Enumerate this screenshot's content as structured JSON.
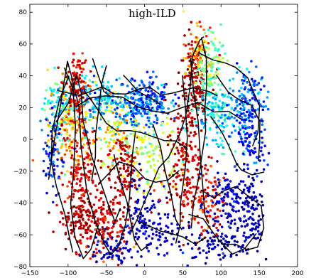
{
  "chart_data": {
    "type": "scatter",
    "title": "high-ILD",
    "xlabel": "",
    "ylabel": "",
    "xlim": [
      -150,
      200
    ],
    "ylim": [
      -80,
      85
    ],
    "xticks": [
      -150,
      -100,
      -50,
      0,
      50,
      100,
      150,
      200
    ],
    "yticks": [
      -80,
      -60,
      -40,
      -20,
      0,
      20,
      40,
      60,
      80
    ],
    "xtick_labels": [
      "−150",
      "−100",
      "−50",
      "0",
      "50",
      "100",
      "150",
      "200"
    ],
    "ytick_labels": [
      "−80",
      "−60",
      "−40",
      "−20",
      "0",
      "20",
      "40",
      "60",
      "80"
    ],
    "grid": false,
    "colormap": "jet",
    "colormap_stops": [
      "#00008f",
      "#0000ff",
      "#00ffff",
      "#ffff00",
      "#ff0000",
      "#800000"
    ],
    "series": [
      {
        "kind": "points",
        "clusters": [
          {
            "x": -110,
            "y": 20,
            "sx": 12,
            "sy": 10,
            "n": 120,
            "c": 0.4
          },
          {
            "x": -95,
            "y": 10,
            "sx": 15,
            "sy": 15,
            "n": 160,
            "c": 0.65
          },
          {
            "x": -90,
            "y": 35,
            "sx": 8,
            "sy": 10,
            "n": 120,
            "c": 0.85
          },
          {
            "x": -85,
            "y": -20,
            "sx": 12,
            "sy": 18,
            "n": 160,
            "c": 0.82
          },
          {
            "x": -80,
            "y": -50,
            "sx": 15,
            "sy": 10,
            "n": 130,
            "c": 0.92
          },
          {
            "x": -50,
            "y": -55,
            "sx": 15,
            "sy": 10,
            "n": 110,
            "c": 0.85
          },
          {
            "x": -45,
            "y": -70,
            "sx": 15,
            "sy": 5,
            "n": 70,
            "c": 0.1
          },
          {
            "x": -60,
            "y": 25,
            "sx": 15,
            "sy": 8,
            "n": 120,
            "c": 0.35
          },
          {
            "x": -40,
            "y": 5,
            "sx": 15,
            "sy": 12,
            "n": 130,
            "c": 0.6
          },
          {
            "x": -25,
            "y": -20,
            "sx": 12,
            "sy": 12,
            "n": 120,
            "c": 0.9
          },
          {
            "x": -15,
            "y": 20,
            "sx": 15,
            "sy": 7,
            "n": 110,
            "c": 0.3
          },
          {
            "x": 5,
            "y": 25,
            "sx": 20,
            "sy": 7,
            "n": 160,
            "c": 0.25
          },
          {
            "x": 10,
            "y": -10,
            "sx": 18,
            "sy": 12,
            "n": 120,
            "c": 0.55
          },
          {
            "x": 0,
            "y": -45,
            "sx": 15,
            "sy": 12,
            "n": 90,
            "c": 0.1
          },
          {
            "x": 50,
            "y": -15,
            "sx": 12,
            "sy": 18,
            "n": 150,
            "c": 0.88
          },
          {
            "x": 65,
            "y": 35,
            "sx": 10,
            "sy": 15,
            "n": 160,
            "c": 0.92
          },
          {
            "x": 70,
            "y": 55,
            "sx": 8,
            "sy": 8,
            "n": 80,
            "c": 0.68
          },
          {
            "x": 85,
            "y": 45,
            "sx": 10,
            "sy": 10,
            "n": 110,
            "c": 0.5
          },
          {
            "x": 95,
            "y": 15,
            "sx": 15,
            "sy": 10,
            "n": 150,
            "c": 0.38
          },
          {
            "x": 135,
            "y": 25,
            "sx": 12,
            "sy": 10,
            "n": 140,
            "c": 0.28
          },
          {
            "x": 140,
            "y": 0,
            "sx": 10,
            "sy": 10,
            "n": 90,
            "c": 0.22
          },
          {
            "x": 75,
            "y": -40,
            "sx": 15,
            "sy": 12,
            "n": 120,
            "c": 0.8
          },
          {
            "x": 110,
            "y": -40,
            "sx": 15,
            "sy": 10,
            "n": 120,
            "c": 0.12
          },
          {
            "x": 140,
            "y": -45,
            "sx": 10,
            "sy": 15,
            "n": 90,
            "c": 0.06
          },
          {
            "x": 100,
            "y": -65,
            "sx": 20,
            "sy": 6,
            "n": 90,
            "c": 0.08
          },
          {
            "x": 20,
            "y": -60,
            "sx": 20,
            "sy": 8,
            "n": 70,
            "c": 0.12
          },
          {
            "x": -120,
            "y": -10,
            "sx": 8,
            "sy": 12,
            "n": 70,
            "c": 0.2
          }
        ]
      },
      {
        "kind": "trajectories",
        "paths": [
          [
            [
              -125,
              -25
            ],
            [
              -118,
              -5
            ],
            [
              -110,
              20
            ],
            [
              -105,
              35
            ],
            [
              -100,
              48
            ],
            [
              -95,
              40
            ],
            [
              -88,
              20
            ],
            [
              -80,
              -5
            ],
            [
              -75,
              -30
            ],
            [
              -65,
              -50
            ],
            [
              -55,
              -65
            ],
            [
              -45,
              -70
            ],
            [
              -35,
              -68
            ],
            [
              -25,
              -55
            ],
            [
              -20,
              -35
            ],
            [
              -15,
              -10
            ],
            [
              -10,
              5
            ]
          ],
          [
            [
              -115,
              10
            ],
            [
              -100,
              25
            ],
            [
              -90,
              42
            ],
            [
              -85,
              30
            ],
            [
              -80,
              10
            ],
            [
              -70,
              -10
            ],
            [
              -60,
              -25
            ],
            [
              -50,
              -40
            ],
            [
              -40,
              -50
            ],
            [
              -30,
              -45
            ]
          ],
          [
            [
              -105,
              45
            ],
            [
              -95,
              30
            ],
            [
              -90,
              5
            ],
            [
              -92,
              -20
            ],
            [
              -95,
              -40
            ],
            [
              -90,
              -60
            ],
            [
              -80,
              -75
            ],
            [
              -70,
              -70
            ],
            [
              -60,
              -55
            ]
          ],
          [
            [
              -100,
              40
            ],
            [
              -110,
              25
            ],
            [
              -120,
              5
            ],
            [
              -122,
              -15
            ],
            [
              -115,
              -30
            ],
            [
              -105,
              -45
            ],
            [
              -100,
              -60
            ],
            [
              -95,
              -72
            ]
          ],
          [
            [
              -80,
              30
            ],
            [
              -65,
              20
            ],
            [
              -50,
              10
            ],
            [
              -35,
              5
            ],
            [
              -20,
              8
            ],
            [
              -5,
              5
            ],
            [
              10,
              2
            ],
            [
              25,
              0
            ],
            [
              40,
              -3
            ],
            [
              55,
              -5
            ]
          ],
          [
            [
              -90,
              20
            ],
            [
              -70,
              25
            ],
            [
              -50,
              28
            ],
            [
              -30,
              25
            ],
            [
              -10,
              22
            ],
            [
              10,
              20
            ],
            [
              30,
              18
            ],
            [
              50,
              20
            ],
            [
              70,
              22
            ],
            [
              90,
              18
            ],
            [
              110,
              15
            ],
            [
              130,
              12
            ]
          ],
          [
            [
              -60,
              -30
            ],
            [
              -45,
              -20
            ],
            [
              -30,
              -15
            ],
            [
              -15,
              -20
            ],
            [
              0,
              -25
            ],
            [
              15,
              -28
            ],
            [
              30,
              -25
            ],
            [
              45,
              -20
            ]
          ],
          [
            [
              -20,
              -60
            ],
            [
              -10,
              -50
            ],
            [
              0,
              -40
            ],
            [
              10,
              -30
            ],
            [
              20,
              -20
            ],
            [
              30,
              -10
            ],
            [
              45,
              0
            ],
            [
              55,
              15
            ],
            [
              60,
              35
            ],
            [
              65,
              50
            ],
            [
              72,
              60
            ],
            [
              78,
              65
            ]
          ],
          [
            [
              50,
              40
            ],
            [
              55,
              20
            ],
            [
              55,
              0
            ],
            [
              52,
              -20
            ],
            [
              48,
              -40
            ],
            [
              45,
              -55
            ],
            [
              40,
              -65
            ]
          ],
          [
            [
              60,
              50
            ],
            [
              65,
              30
            ],
            [
              70,
              10
            ],
            [
              72,
              -10
            ],
            [
              75,
              -30
            ],
            [
              80,
              -45
            ],
            [
              85,
              -55
            ]
          ],
          [
            [
              75,
              65
            ],
            [
              80,
              50
            ],
            [
              82,
              35
            ],
            [
              80,
              20
            ],
            [
              78,
              5
            ],
            [
              75,
              -10
            ],
            [
              70,
              -25
            ],
            [
              65,
              -40
            ],
            [
              60,
              -55
            ]
          ],
          [
            [
              70,
              55
            ],
            [
              90,
              50
            ],
            [
              105,
              48
            ],
            [
              120,
              45
            ],
            [
              135,
              38
            ],
            [
              145,
              30
            ],
            [
              150,
              20
            ],
            [
              148,
              5
            ],
            [
              140,
              -5
            ]
          ],
          [
            [
              95,
              40
            ],
            [
              110,
              30
            ],
            [
              125,
              25
            ],
            [
              140,
              20
            ],
            [
              150,
              10
            ],
            [
              152,
              -5
            ],
            [
              148,
              -15
            ]
          ],
          [
            [
              75,
              -30
            ],
            [
              90,
              -35
            ],
            [
              105,
              -32
            ],
            [
              120,
              -30
            ],
            [
              135,
              -35
            ],
            [
              150,
              -42
            ],
            [
              155,
              -55
            ],
            [
              148,
              -65
            ],
            [
              135,
              -70
            ],
            [
              120,
              -68
            ],
            [
              105,
              -65
            ]
          ],
          [
            [
              60,
              -45
            ],
            [
              75,
              -50
            ],
            [
              90,
              -58
            ],
            [
              100,
              -65
            ],
            [
              115,
              -72
            ],
            [
              130,
              -68
            ],
            [
              145,
              -60
            ]
          ],
          [
            [
              -10,
              -50
            ],
            [
              5,
              -55
            ],
            [
              20,
              -58
            ],
            [
              35,
              -60
            ],
            [
              50,
              -62
            ],
            [
              65,
              -65
            ],
            [
              80,
              -62
            ]
          ],
          [
            [
              -115,
              30
            ],
            [
              -100,
              30
            ],
            [
              -85,
              28
            ],
            [
              -70,
              30
            ],
            [
              -55,
              32
            ],
            [
              -40,
              30
            ],
            [
              -25,
              28
            ],
            [
              -10,
              30
            ],
            [
              5,
              32
            ],
            [
              20,
              30
            ],
            [
              35,
              28
            ],
            [
              50,
              30
            ],
            [
              65,
              32
            ],
            [
              80,
              30
            ],
            [
              95,
              28
            ]
          ],
          [
            [
              -40,
              -10
            ],
            [
              -30,
              -25
            ],
            [
              -22,
              -40
            ],
            [
              -15,
              -55
            ],
            [
              -12,
              -65
            ],
            [
              -5,
              -70
            ],
            [
              5,
              -68
            ]
          ],
          [
            [
              10,
              10
            ],
            [
              20,
              -5
            ],
            [
              28,
              -20
            ],
            [
              35,
              -35
            ],
            [
              42,
              -50
            ],
            [
              50,
              -58
            ]
          ],
          [
            [
              -50,
              45
            ],
            [
              -55,
              35
            ],
            [
              -60,
              20
            ],
            [
              -62,
              5
            ],
            [
              -65,
              -10
            ],
            [
              -68,
              -25
            ]
          ],
          [
            [
              -70,
              50
            ],
            [
              -62,
              40
            ],
            [
              -55,
              30
            ],
            [
              -45,
              25
            ]
          ],
          [
            [
              85,
              15
            ],
            [
              100,
              5
            ],
            [
              110,
              -5
            ],
            [
              118,
              -15
            ],
            [
              125,
              -20
            ],
            [
              140,
              -22
            ],
            [
              155,
              -20
            ]
          ],
          [
            [
              -30,
              40
            ],
            [
              -20,
              35
            ],
            [
              -10,
              30
            ],
            [
              0,
              28
            ],
            [
              10,
              26
            ],
            [
              20,
              24
            ]
          ]
        ]
      }
    ]
  }
}
